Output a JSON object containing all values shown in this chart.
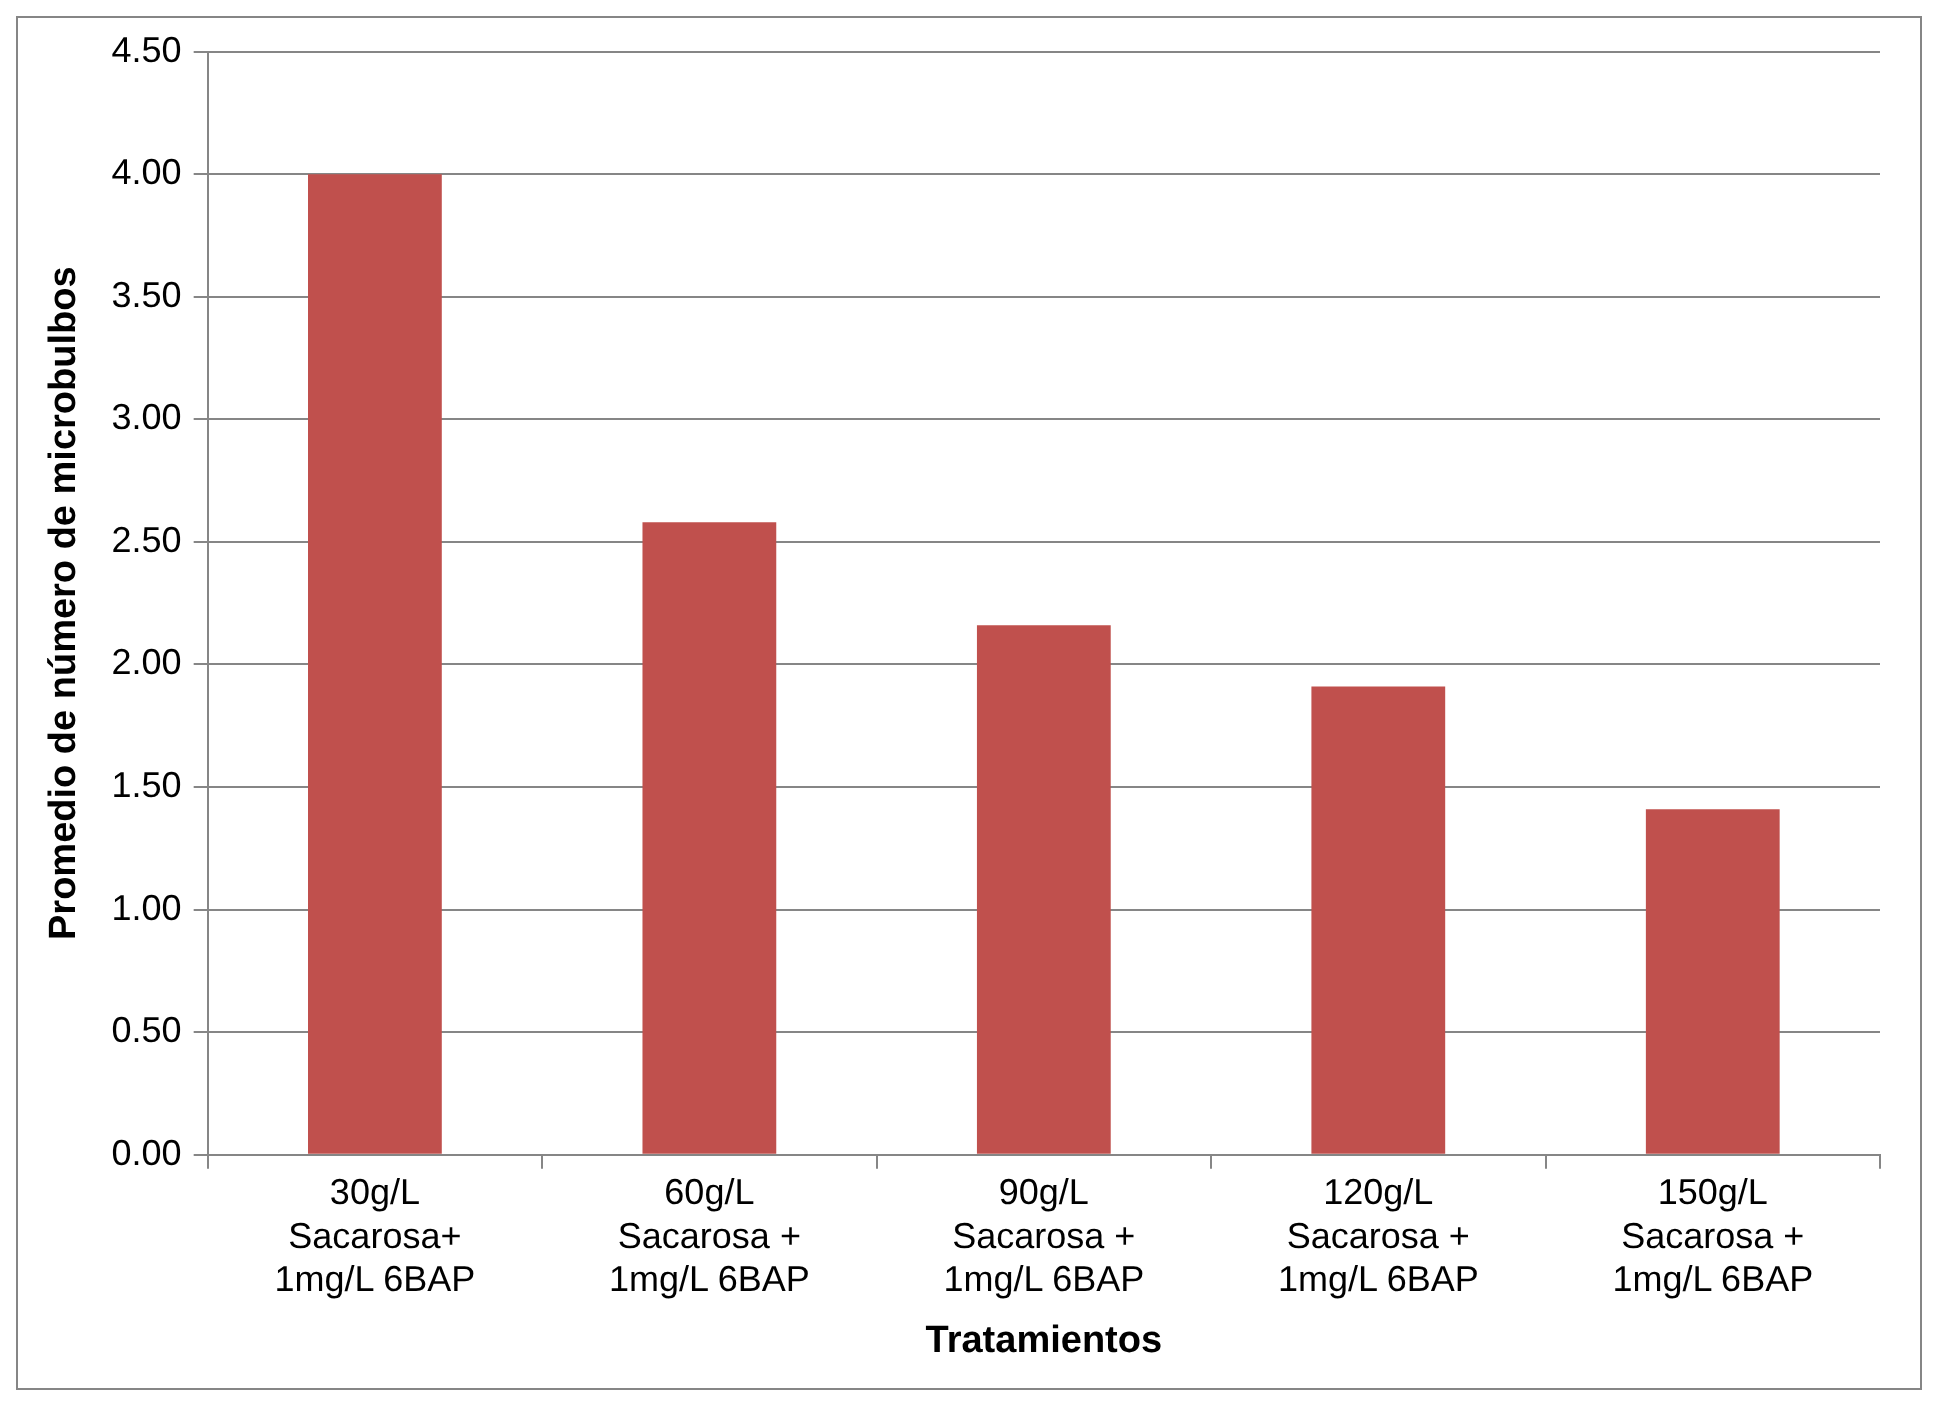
{
  "chart_data": {
    "type": "bar",
    "xlabel": "Tratamientos",
    "ylabel": "Promedio de número de microbulbos",
    "categories": [
      "30g/L\nSacarosa+\n1mg/L 6BAP",
      "60g/L\nSacarosa +\n1mg/L 6BAP",
      "90g/L\nSacarosa +\n1mg/L 6BAP",
      "120g/L\nSacarosa +\n1mg/L 6BAP",
      "150g/L\nSacarosa +\n1mg/L 6BAP"
    ],
    "values": [
      4.0,
      2.58,
      2.16,
      1.91,
      1.41
    ],
    "color": "#c0504d",
    "ylim": [
      0,
      4.5
    ],
    "yticks": [
      {
        "value": 0,
        "label": "0.00"
      },
      {
        "value": 0.5,
        "label": "0.50"
      },
      {
        "value": 1,
        "label": "1.00"
      },
      {
        "value": 1.5,
        "label": "1.50"
      },
      {
        "value": 2,
        "label": "2.00"
      },
      {
        "value": 2.5,
        "label": "2.50"
      },
      {
        "value": 3,
        "label": "3.00"
      },
      {
        "value": 3.5,
        "label": "3.50"
      },
      {
        "value": 4,
        "label": "4.00"
      },
      {
        "value": 4.5,
        "label": "4.50"
      }
    ],
    "grid": "y",
    "legend": false
  }
}
